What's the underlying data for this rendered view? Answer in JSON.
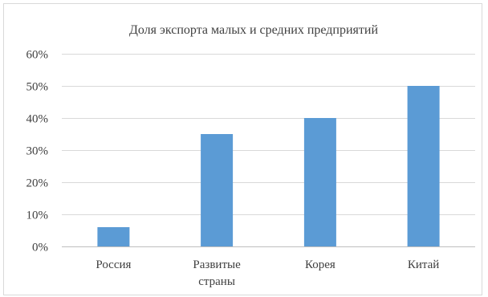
{
  "chart_data": {
    "type": "bar",
    "title": "Доля экспорта малых и средних предприятий",
    "categories": [
      [
        "Россия"
      ],
      [
        "Развитые",
        "страны"
      ],
      [
        "Корея"
      ],
      [
        "Китай"
      ]
    ],
    "series": [
      {
        "values": [
          6,
          35,
          40,
          50
        ],
        "color": "#5b9bd5"
      }
    ],
    "ylim": [
      0,
      60
    ],
    "ytick_step": 10,
    "ytick_format": "percent",
    "grid": true,
    "legend": "none"
  }
}
